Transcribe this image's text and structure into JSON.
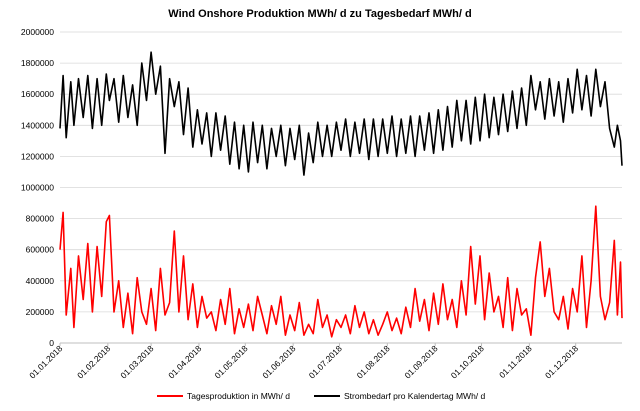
{
  "chart_data": {
    "type": "line",
    "title": "Wind Onshore  Produktion  MWh/ d zu Tagesbedarf  MWh/ d",
    "xlabel": "",
    "ylabel": "",
    "ylim": [
      0,
      2000000
    ],
    "y_ticks": [
      "0",
      "200000",
      "400000",
      "600000",
      "800000",
      "1000000",
      "1200000",
      "1400000",
      "1600000",
      "1800000",
      "2000000"
    ],
    "x_ticks": [
      "01.01.2018",
      "01.02.2018",
      "01.03.2018",
      "01.04.2018",
      "01.05.2018",
      "01.06.2018",
      "01.07.2018",
      "01.08.2018",
      "01.09.2018",
      "01.10.2018",
      "01.11.2018",
      "01.12.2018"
    ],
    "grid": "horizontal",
    "legend_position": "bottom",
    "series": [
      {
        "name": "Tagesproduktion in MWh/ d",
        "color": "#ff0000",
        "points": [
          [
            "2018-01-01",
            600000
          ],
          [
            "2018-01-03",
            840000
          ],
          [
            "2018-01-05",
            180000
          ],
          [
            "2018-01-08",
            480000
          ],
          [
            "2018-01-10",
            100000
          ],
          [
            "2018-01-13",
            560000
          ],
          [
            "2018-01-16",
            280000
          ],
          [
            "2018-01-19",
            640000
          ],
          [
            "2018-01-22",
            200000
          ],
          [
            "2018-01-25",
            620000
          ],
          [
            "2018-01-28",
            300000
          ],
          [
            "2018-01-31",
            780000
          ],
          [
            "2018-02-02",
            820000
          ],
          [
            "2018-02-05",
            200000
          ],
          [
            "2018-02-08",
            400000
          ],
          [
            "2018-02-11",
            100000
          ],
          [
            "2018-02-14",
            320000
          ],
          [
            "2018-02-17",
            60000
          ],
          [
            "2018-02-20",
            420000
          ],
          [
            "2018-02-23",
            200000
          ],
          [
            "2018-02-26",
            120000
          ],
          [
            "2018-03-01",
            350000
          ],
          [
            "2018-03-04",
            80000
          ],
          [
            "2018-03-07",
            480000
          ],
          [
            "2018-03-10",
            180000
          ],
          [
            "2018-03-13",
            260000
          ],
          [
            "2018-03-16",
            720000
          ],
          [
            "2018-03-19",
            200000
          ],
          [
            "2018-03-22",
            560000
          ],
          [
            "2018-03-25",
            150000
          ],
          [
            "2018-03-28",
            380000
          ],
          [
            "2018-03-31",
            100000
          ],
          [
            "2018-04-03",
            300000
          ],
          [
            "2018-04-06",
            160000
          ],
          [
            "2018-04-09",
            200000
          ],
          [
            "2018-04-12",
            80000
          ],
          [
            "2018-04-15",
            280000
          ],
          [
            "2018-04-18",
            120000
          ],
          [
            "2018-04-21",
            350000
          ],
          [
            "2018-04-24",
            60000
          ],
          [
            "2018-04-27",
            220000
          ],
          [
            "2018-04-30",
            100000
          ],
          [
            "2018-05-03",
            250000
          ],
          [
            "2018-05-06",
            80000
          ],
          [
            "2018-05-09",
            300000
          ],
          [
            "2018-05-12",
            180000
          ],
          [
            "2018-05-15",
            60000
          ],
          [
            "2018-05-18",
            240000
          ],
          [
            "2018-05-21",
            120000
          ],
          [
            "2018-05-24",
            300000
          ],
          [
            "2018-05-27",
            50000
          ],
          [
            "2018-05-30",
            180000
          ],
          [
            "2018-06-02",
            80000
          ],
          [
            "2018-06-05",
            260000
          ],
          [
            "2018-06-08",
            50000
          ],
          [
            "2018-06-11",
            120000
          ],
          [
            "2018-06-14",
            60000
          ],
          [
            "2018-06-17",
            280000
          ],
          [
            "2018-06-20",
            100000
          ],
          [
            "2018-06-23",
            180000
          ],
          [
            "2018-06-26",
            40000
          ],
          [
            "2018-06-29",
            150000
          ],
          [
            "2018-07-02",
            100000
          ],
          [
            "2018-07-05",
            180000
          ],
          [
            "2018-07-08",
            60000
          ],
          [
            "2018-07-11",
            240000
          ],
          [
            "2018-07-14",
            100000
          ],
          [
            "2018-07-17",
            200000
          ],
          [
            "2018-07-20",
            60000
          ],
          [
            "2018-07-23",
            150000
          ],
          [
            "2018-07-26",
            50000
          ],
          [
            "2018-07-29",
            120000
          ],
          [
            "2018-08-01",
            200000
          ],
          [
            "2018-08-04",
            80000
          ],
          [
            "2018-08-07",
            160000
          ],
          [
            "2018-08-10",
            60000
          ],
          [
            "2018-08-13",
            230000
          ],
          [
            "2018-08-16",
            100000
          ],
          [
            "2018-08-19",
            350000
          ],
          [
            "2018-08-22",
            140000
          ],
          [
            "2018-08-25",
            280000
          ],
          [
            "2018-08-28",
            80000
          ],
          [
            "2018-08-31",
            320000
          ],
          [
            "2018-09-03",
            120000
          ],
          [
            "2018-09-06",
            380000
          ],
          [
            "2018-09-09",
            150000
          ],
          [
            "2018-09-12",
            280000
          ],
          [
            "2018-09-15",
            100000
          ],
          [
            "2018-09-18",
            400000
          ],
          [
            "2018-09-21",
            180000
          ],
          [
            "2018-09-24",
            620000
          ],
          [
            "2018-09-27",
            250000
          ],
          [
            "2018-09-30",
            560000
          ],
          [
            "2018-10-03",
            150000
          ],
          [
            "2018-10-06",
            450000
          ],
          [
            "2018-10-09",
            200000
          ],
          [
            "2018-10-12",
            300000
          ],
          [
            "2018-10-15",
            100000
          ],
          [
            "2018-10-18",
            420000
          ],
          [
            "2018-10-21",
            80000
          ],
          [
            "2018-10-24",
            350000
          ],
          [
            "2018-10-27",
            180000
          ],
          [
            "2018-10-30",
            220000
          ],
          [
            "2018-11-02",
            50000
          ],
          [
            "2018-11-05",
            420000
          ],
          [
            "2018-11-08",
            650000
          ],
          [
            "2018-11-11",
            300000
          ],
          [
            "2018-11-14",
            480000
          ],
          [
            "2018-11-17",
            200000
          ],
          [
            "2018-11-20",
            150000
          ],
          [
            "2018-11-23",
            300000
          ],
          [
            "2018-11-26",
            90000
          ],
          [
            "2018-11-29",
            350000
          ],
          [
            "2018-12-02",
            200000
          ],
          [
            "2018-12-05",
            560000
          ],
          [
            "2018-12-08",
            100000
          ],
          [
            "2018-12-11",
            400000
          ],
          [
            "2018-12-14",
            880000
          ],
          [
            "2018-12-17",
            300000
          ],
          [
            "2018-12-20",
            150000
          ],
          [
            "2018-12-23",
            260000
          ],
          [
            "2018-12-26",
            660000
          ],
          [
            "2018-12-28",
            180000
          ],
          [
            "2018-12-30",
            520000
          ],
          [
            "2018-12-31",
            160000
          ]
        ]
      },
      {
        "name": "Strombedarf pro Kalendertag MWh/ d",
        "color": "#000000",
        "points": [
          [
            "2018-01-01",
            1380000
          ],
          [
            "2018-01-03",
            1720000
          ],
          [
            "2018-01-05",
            1320000
          ],
          [
            "2018-01-08",
            1680000
          ],
          [
            "2018-01-10",
            1400000
          ],
          [
            "2018-01-13",
            1700000
          ],
          [
            "2018-01-16",
            1450000
          ],
          [
            "2018-01-19",
            1720000
          ],
          [
            "2018-01-22",
            1380000
          ],
          [
            "2018-01-25",
            1700000
          ],
          [
            "2018-01-28",
            1400000
          ],
          [
            "2018-01-31",
            1730000
          ],
          [
            "2018-02-02",
            1560000
          ],
          [
            "2018-02-05",
            1700000
          ],
          [
            "2018-02-08",
            1420000
          ],
          [
            "2018-02-11",
            1720000
          ],
          [
            "2018-02-14",
            1450000
          ],
          [
            "2018-02-17",
            1660000
          ],
          [
            "2018-02-20",
            1400000
          ],
          [
            "2018-02-23",
            1800000
          ],
          [
            "2018-02-26",
            1560000
          ],
          [
            "2018-03-01",
            1870000
          ],
          [
            "2018-03-04",
            1600000
          ],
          [
            "2018-03-07",
            1780000
          ],
          [
            "2018-03-10",
            1220000
          ],
          [
            "2018-03-13",
            1700000
          ],
          [
            "2018-03-16",
            1520000
          ],
          [
            "2018-03-19",
            1680000
          ],
          [
            "2018-03-22",
            1340000
          ],
          [
            "2018-03-25",
            1640000
          ],
          [
            "2018-03-28",
            1260000
          ],
          [
            "2018-03-31",
            1500000
          ],
          [
            "2018-04-03",
            1280000
          ],
          [
            "2018-04-06",
            1480000
          ],
          [
            "2018-04-09",
            1200000
          ],
          [
            "2018-04-12",
            1480000
          ],
          [
            "2018-04-15",
            1240000
          ],
          [
            "2018-04-18",
            1460000
          ],
          [
            "2018-04-21",
            1150000
          ],
          [
            "2018-04-24",
            1420000
          ],
          [
            "2018-04-27",
            1120000
          ],
          [
            "2018-04-30",
            1400000
          ],
          [
            "2018-05-03",
            1100000
          ],
          [
            "2018-05-06",
            1420000
          ],
          [
            "2018-05-09",
            1160000
          ],
          [
            "2018-05-12",
            1400000
          ],
          [
            "2018-05-15",
            1120000
          ],
          [
            "2018-05-18",
            1380000
          ],
          [
            "2018-05-21",
            1200000
          ],
          [
            "2018-05-24",
            1400000
          ],
          [
            "2018-05-27",
            1140000
          ],
          [
            "2018-05-30",
            1380000
          ],
          [
            "2018-06-02",
            1180000
          ],
          [
            "2018-06-05",
            1400000
          ],
          [
            "2018-06-08",
            1080000
          ],
          [
            "2018-06-11",
            1350000
          ],
          [
            "2018-06-14",
            1160000
          ],
          [
            "2018-06-17",
            1420000
          ],
          [
            "2018-06-20",
            1200000
          ],
          [
            "2018-06-23",
            1400000
          ],
          [
            "2018-06-26",
            1200000
          ],
          [
            "2018-06-29",
            1420000
          ],
          [
            "2018-07-02",
            1240000
          ],
          [
            "2018-07-05",
            1440000
          ],
          [
            "2018-07-08",
            1200000
          ],
          [
            "2018-07-11",
            1420000
          ],
          [
            "2018-07-14",
            1220000
          ],
          [
            "2018-07-17",
            1440000
          ],
          [
            "2018-07-20",
            1180000
          ],
          [
            "2018-07-23",
            1440000
          ],
          [
            "2018-07-26",
            1200000
          ],
          [
            "2018-07-29",
            1440000
          ],
          [
            "2018-08-01",
            1220000
          ],
          [
            "2018-08-04",
            1460000
          ],
          [
            "2018-08-07",
            1200000
          ],
          [
            "2018-08-10",
            1440000
          ],
          [
            "2018-08-13",
            1220000
          ],
          [
            "2018-08-16",
            1460000
          ],
          [
            "2018-08-19",
            1200000
          ],
          [
            "2018-08-22",
            1460000
          ],
          [
            "2018-08-25",
            1240000
          ],
          [
            "2018-08-28",
            1480000
          ],
          [
            "2018-08-31",
            1220000
          ],
          [
            "2018-09-03",
            1500000
          ],
          [
            "2018-09-06",
            1240000
          ],
          [
            "2018-09-09",
            1520000
          ],
          [
            "2018-09-12",
            1260000
          ],
          [
            "2018-09-15",
            1560000
          ],
          [
            "2018-09-18",
            1300000
          ],
          [
            "2018-09-21",
            1560000
          ],
          [
            "2018-09-24",
            1280000
          ],
          [
            "2018-09-27",
            1580000
          ],
          [
            "2018-09-30",
            1300000
          ],
          [
            "2018-10-03",
            1600000
          ],
          [
            "2018-10-06",
            1320000
          ],
          [
            "2018-10-09",
            1580000
          ],
          [
            "2018-10-12",
            1340000
          ],
          [
            "2018-10-15",
            1600000
          ],
          [
            "2018-10-18",
            1360000
          ],
          [
            "2018-10-21",
            1620000
          ],
          [
            "2018-10-24",
            1380000
          ],
          [
            "2018-10-27",
            1640000
          ],
          [
            "2018-10-30",
            1400000
          ],
          [
            "2018-11-02",
            1720000
          ],
          [
            "2018-11-05",
            1500000
          ],
          [
            "2018-11-08",
            1680000
          ],
          [
            "2018-11-11",
            1440000
          ],
          [
            "2018-11-14",
            1700000
          ],
          [
            "2018-11-17",
            1460000
          ],
          [
            "2018-11-20",
            1680000
          ],
          [
            "2018-11-23",
            1420000
          ],
          [
            "2018-11-26",
            1700000
          ],
          [
            "2018-11-29",
            1480000
          ],
          [
            "2018-12-02",
            1760000
          ],
          [
            "2018-12-05",
            1500000
          ],
          [
            "2018-12-08",
            1720000
          ],
          [
            "2018-12-11",
            1460000
          ],
          [
            "2018-12-14",
            1760000
          ],
          [
            "2018-12-17",
            1520000
          ],
          [
            "2018-12-20",
            1680000
          ],
          [
            "2018-12-23",
            1380000
          ],
          [
            "2018-12-26",
            1260000
          ],
          [
            "2018-12-28",
            1400000
          ],
          [
            "2018-12-30",
            1300000
          ],
          [
            "2018-12-31",
            1140000
          ]
        ]
      }
    ]
  }
}
